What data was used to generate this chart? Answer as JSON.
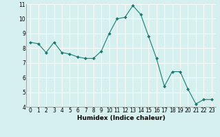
{
  "x": [
    0,
    1,
    2,
    3,
    4,
    5,
    6,
    7,
    8,
    9,
    10,
    11,
    12,
    13,
    14,
    15,
    16,
    17,
    18,
    19,
    20,
    21,
    22,
    23
  ],
  "y": [
    8.4,
    8.3,
    7.7,
    8.4,
    7.7,
    7.6,
    7.4,
    7.3,
    7.3,
    7.8,
    9.0,
    10.0,
    10.1,
    10.9,
    10.3,
    8.8,
    7.3,
    5.4,
    6.4,
    6.4,
    5.2,
    4.2,
    4.5,
    4.5
  ],
  "line_color": "#1a7a6e",
  "marker": "D",
  "marker_size": 2.0,
  "bg_color": "#d6f0f0",
  "grid_color": "#ffffff",
  "xlabel": "Humidex (Indice chaleur)",
  "xlim": [
    -0.5,
    23.5
  ],
  "ylim": [
    4,
    11
  ],
  "yticks": [
    4,
    5,
    6,
    7,
    8,
    9,
    10,
    11
  ],
  "xticks": [
    0,
    1,
    2,
    3,
    4,
    5,
    6,
    7,
    8,
    9,
    10,
    11,
    12,
    13,
    14,
    15,
    16,
    17,
    18,
    19,
    20,
    21,
    22,
    23
  ],
  "tick_fontsize": 5.5,
  "xlabel_fontsize": 6.5
}
